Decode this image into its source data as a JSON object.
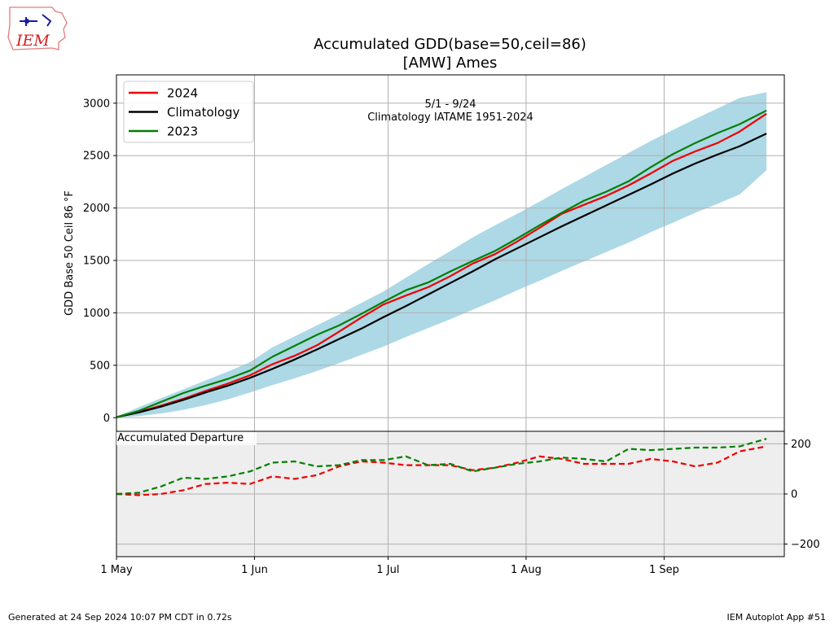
{
  "header": {
    "title_line1": "Accumulated GDD(base=50,ceil=86)",
    "title_line2": "[AMW] Ames",
    "logo_text": "IEM"
  },
  "footer": {
    "generated": "Generated at 24 Sep 2024 10:07 PM CDT in 0.72s",
    "app": "IEM Autoplot App #51"
  },
  "colors": {
    "series_2024": "#ee0000",
    "climatology": "#000000",
    "series_2023": "#008000",
    "band": "#add8e6",
    "departure_bg": "#eeeeee",
    "grid": "#b0b0b0"
  },
  "chart_data": [
    {
      "type": "line",
      "title": "Accumulated GDD(base=50,ceil=86)",
      "ylabel": "GDD Base 50 Ceil 86 °F",
      "xlabel": "",
      "annotation": [
        "5/1 - 9/24",
        "Climatology IATAME 1951-2024"
      ],
      "legend_position": "upper-left",
      "grid": true,
      "xlim": [
        "2024-05-01",
        "2024-09-28"
      ],
      "ylim": [
        -130,
        3270
      ],
      "x_ticks": [
        {
          "date": "2024-05-01",
          "label": "1 May"
        },
        {
          "date": "2024-06-01",
          "label": "1 Jun"
        },
        {
          "date": "2024-07-01",
          "label": "1 Jul"
        },
        {
          "date": "2024-08-01",
          "label": "1 Aug"
        },
        {
          "date": "2024-09-01",
          "label": "1 Sep"
        }
      ],
      "y_ticks": [
        0,
        500,
        1000,
        1500,
        2000,
        2500,
        3000
      ],
      "x": [
        "2024-05-01",
        "2024-05-06",
        "2024-05-11",
        "2024-05-16",
        "2024-05-21",
        "2024-05-26",
        "2024-05-31",
        "2024-06-05",
        "2024-06-10",
        "2024-06-15",
        "2024-06-20",
        "2024-06-25",
        "2024-06-30",
        "2024-07-05",
        "2024-07-10",
        "2024-07-15",
        "2024-07-20",
        "2024-07-25",
        "2024-07-30",
        "2024-08-04",
        "2024-08-09",
        "2024-08-14",
        "2024-08-19",
        "2024-08-24",
        "2024-08-29",
        "2024-09-03",
        "2024-09-08",
        "2024-09-13",
        "2024-09-18",
        "2024-09-24"
      ],
      "series": [
        {
          "name": "2024",
          "color": "#ee0000",
          "values": [
            5,
            55,
            115,
            180,
            255,
            325,
            405,
            510,
            590,
            690,
            820,
            955,
            1080,
            1165,
            1245,
            1350,
            1470,
            1560,
            1680,
            1810,
            1945,
            2030,
            2115,
            2215,
            2330,
            2450,
            2540,
            2620,
            2730,
            2900
          ]
        },
        {
          "name": "Climatology",
          "color": "#000000",
          "values": [
            5,
            50,
            105,
            170,
            240,
            305,
            380,
            465,
            555,
            650,
            750,
            850,
            960,
            1065,
            1175,
            1285,
            1395,
            1510,
            1615,
            1720,
            1825,
            1925,
            2025,
            2125,
            2225,
            2330,
            2425,
            2510,
            2590,
            2710
          ]
        },
        {
          "name": "2023",
          "color": "#008000",
          "values": [
            5,
            65,
            150,
            235,
            305,
            370,
            450,
            580,
            685,
            790,
            880,
            990,
            1105,
            1215,
            1290,
            1395,
            1495,
            1590,
            1710,
            1835,
            1955,
            2070,
            2155,
            2255,
            2390,
            2515,
            2620,
            2715,
            2800,
            2930
          ]
        }
      ],
      "band": {
        "name": "climatology range",
        "color": "#add8e6",
        "lower": [
          0,
          15,
          40,
          75,
          120,
          175,
          240,
          310,
          375,
          445,
          520,
          600,
          680,
          770,
          855,
          940,
          1030,
          1120,
          1215,
          1305,
          1400,
          1490,
          1580,
          1670,
          1770,
          1860,
          1955,
          2040,
          2130,
          2360
        ],
        "upper": [
          10,
          100,
          185,
          270,
          355,
          440,
          530,
          670,
          775,
          880,
          985,
          1095,
          1205,
          1335,
          1465,
          1590,
          1720,
          1835,
          1945,
          2060,
          2180,
          2295,
          2410,
          2525,
          2640,
          2745,
          2850,
          2950,
          3050,
          3105
        ]
      }
    },
    {
      "type": "line",
      "title": "Accumulated Departure",
      "ylabel": "",
      "xlabel": "",
      "grid": true,
      "ylim": [
        -250,
        250
      ],
      "y_ticks": [
        -200,
        0,
        200
      ],
      "x": [
        "2024-05-01",
        "2024-05-06",
        "2024-05-11",
        "2024-05-16",
        "2024-05-21",
        "2024-05-26",
        "2024-05-31",
        "2024-06-05",
        "2024-06-10",
        "2024-06-15",
        "2024-06-20",
        "2024-06-25",
        "2024-06-30",
        "2024-07-05",
        "2024-07-10",
        "2024-07-15",
        "2024-07-20",
        "2024-07-25",
        "2024-07-30",
        "2024-08-04",
        "2024-08-09",
        "2024-08-14",
        "2024-08-19",
        "2024-08-24",
        "2024-08-29",
        "2024-09-03",
        "2024-09-08",
        "2024-09-13",
        "2024-09-18",
        "2024-09-24"
      ],
      "series": [
        {
          "name": "2024",
          "color": "#ee0000",
          "values": [
            0,
            -5,
            0,
            15,
            40,
            45,
            40,
            70,
            60,
            75,
            110,
            130,
            125,
            115,
            115,
            115,
            95,
            105,
            125,
            150,
            140,
            120,
            120,
            120,
            140,
            130,
            110,
            125,
            170,
            190
          ]
        },
        {
          "name": "2023",
          "color": "#008000",
          "values": [
            0,
            5,
            30,
            65,
            60,
            70,
            90,
            125,
            130,
            110,
            115,
            135,
            135,
            150,
            115,
            120,
            90,
            105,
            120,
            130,
            145,
            140,
            130,
            180,
            175,
            180,
            185,
            185,
            190,
            220
          ]
        }
      ]
    }
  ]
}
